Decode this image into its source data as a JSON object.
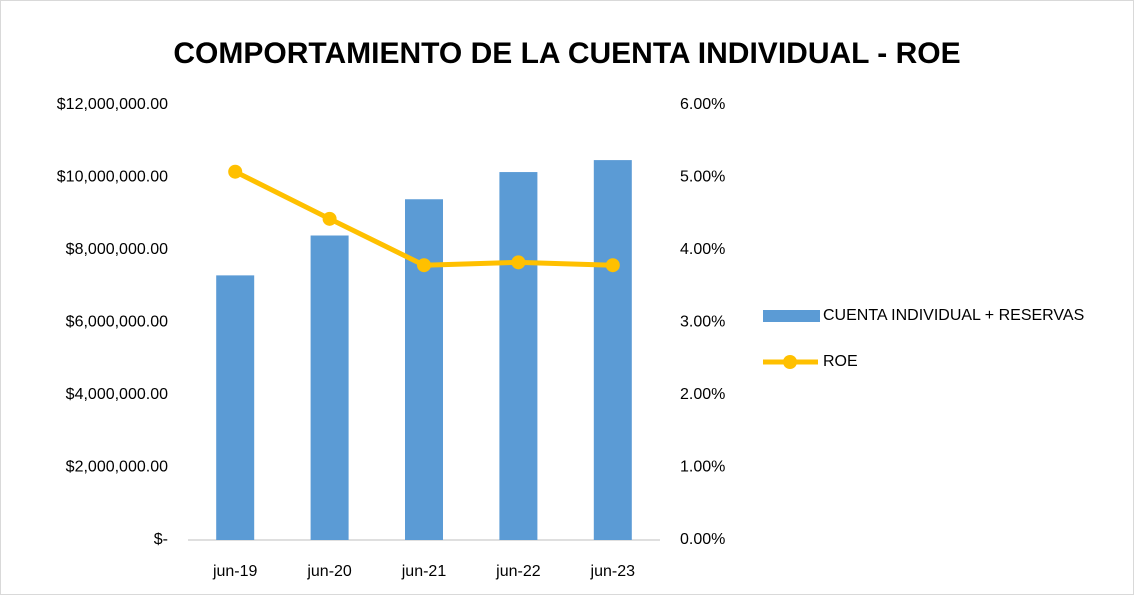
{
  "chart_data": {
    "type": "bar_line",
    "title": "COMPORTAMIENTO DE LA CUENTA INDIVIDUAL - ROE",
    "categories": [
      "jun-19",
      "jun-20",
      "jun-21",
      "jun-22",
      "jun-23"
    ],
    "series": [
      {
        "name": "CUENTA INDIVIDUAL + RESERVAS",
        "type": "bar",
        "color": "#5b9bd5",
        "values": [
          7300000,
          8400000,
          9400000,
          10150000,
          10480000
        ]
      },
      {
        "name": "ROE",
        "type": "line",
        "axis": "y2",
        "color": "#ffc000",
        "values": [
          5.08,
          4.43,
          3.79,
          3.83,
          3.79
        ]
      }
    ],
    "ylim": [
      0,
      12000000
    ],
    "yticks": [
      {
        "value": 0,
        "label": "$-"
      },
      {
        "value": 2000000,
        "label": "$2,000,000.00"
      },
      {
        "value": 4000000,
        "label": "$4,000,000.00"
      },
      {
        "value": 6000000,
        "label": "$6,000,000.00"
      },
      {
        "value": 8000000,
        "label": "$8,000,000.00"
      },
      {
        "value": 10000000,
        "label": "$10,000,000.00"
      },
      {
        "value": 12000000,
        "label": "$12,000,000.00"
      }
    ],
    "y2lim": [
      0,
      6
    ],
    "y2ticks": [
      {
        "value": 0,
        "label": "0.00%"
      },
      {
        "value": 1,
        "label": "1.00%"
      },
      {
        "value": 2,
        "label": "2.00%"
      },
      {
        "value": 3,
        "label": "3.00%"
      },
      {
        "value": 4,
        "label": "4.00%"
      },
      {
        "value": 5,
        "label": "5.00%"
      },
      {
        "value": 6,
        "label": "6.00%"
      }
    ],
    "grid": false,
    "legend": "right"
  }
}
